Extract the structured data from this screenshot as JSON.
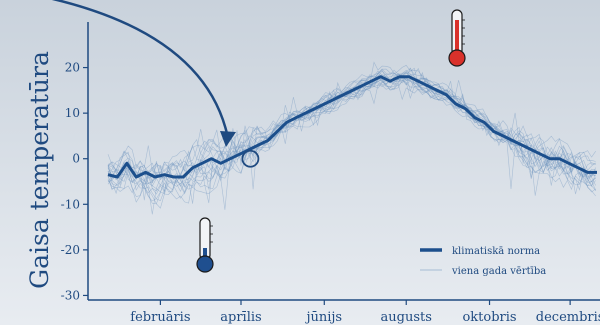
{
  "colors": {
    "sky_top": "#c9d2dc",
    "sky_bottom": "#e4e9ee",
    "norm_line": "#1c4f8c",
    "year_lines": "#6f95bf",
    "axis": "#1f4a80",
    "thermometer_hot": "#d9312b",
    "thermometer_cold": "#1f4f8f"
  },
  "icons": {
    "hot": "thermometer-hot-icon",
    "cold": "thermometer-cold-icon",
    "pointer": "curved-arrow-pointer"
  },
  "chart_data": {
    "type": "line",
    "title": "",
    "ylabel": "Gaisa temperatūra",
    "xlabel": "",
    "ylim": [
      -31,
      30
    ],
    "yticks": [
      20,
      10,
      0,
      -10,
      -20,
      -30
    ],
    "xlim": [
      1,
      365
    ],
    "x_tick_labels": [
      "februāris",
      "aprīlis",
      "jūnijs",
      "augusts",
      "oktobris",
      "decembris"
    ],
    "x_tick_days": [
      40,
      100,
      162,
      223,
      285,
      345
    ],
    "grid": false,
    "legend_position": "bottom-right",
    "series": [
      {
        "name": "klimatiskā norma",
        "style": "bold",
        "x": [
          1,
          8,
          15,
          22,
          29,
          36,
          43,
          50,
          57,
          64,
          71,
          78,
          85,
          92,
          99,
          106,
          113,
          120,
          127,
          134,
          141,
          148,
          155,
          162,
          169,
          176,
          183,
          190,
          197,
          204,
          211,
          218,
          225,
          232,
          239,
          246,
          253,
          260,
          267,
          274,
          281,
          288,
          295,
          302,
          309,
          316,
          323,
          330,
          337,
          344,
          351,
          358,
          365
        ],
        "values": [
          -3.5,
          -4,
          -1,
          -4,
          -3,
          -4,
          -3.5,
          -4,
          -4,
          -2,
          -1,
          0,
          -1,
          0,
          1,
          2,
          3,
          4,
          6,
          8,
          9,
          10,
          11,
          12,
          13,
          14,
          15,
          16,
          17,
          18,
          17,
          18,
          18,
          17,
          16,
          15,
          14,
          12,
          11,
          9,
          8,
          6,
          5,
          4,
          3,
          2,
          1,
          0,
          0,
          -1,
          -2,
          -3,
          -3
        ]
      },
      {
        "name": "viena gada vērtība",
        "style": "thin",
        "note": "multiple single-year series rendered as faint lines around the norm",
        "count": 20
      }
    ],
    "annotation": {
      "type": "circle",
      "x_day": 107,
      "y_value": 0
    }
  },
  "legend": {
    "items": [
      {
        "label": "klimatiskā norma"
      },
      {
        "label": "viena gada vērtība"
      }
    ]
  }
}
